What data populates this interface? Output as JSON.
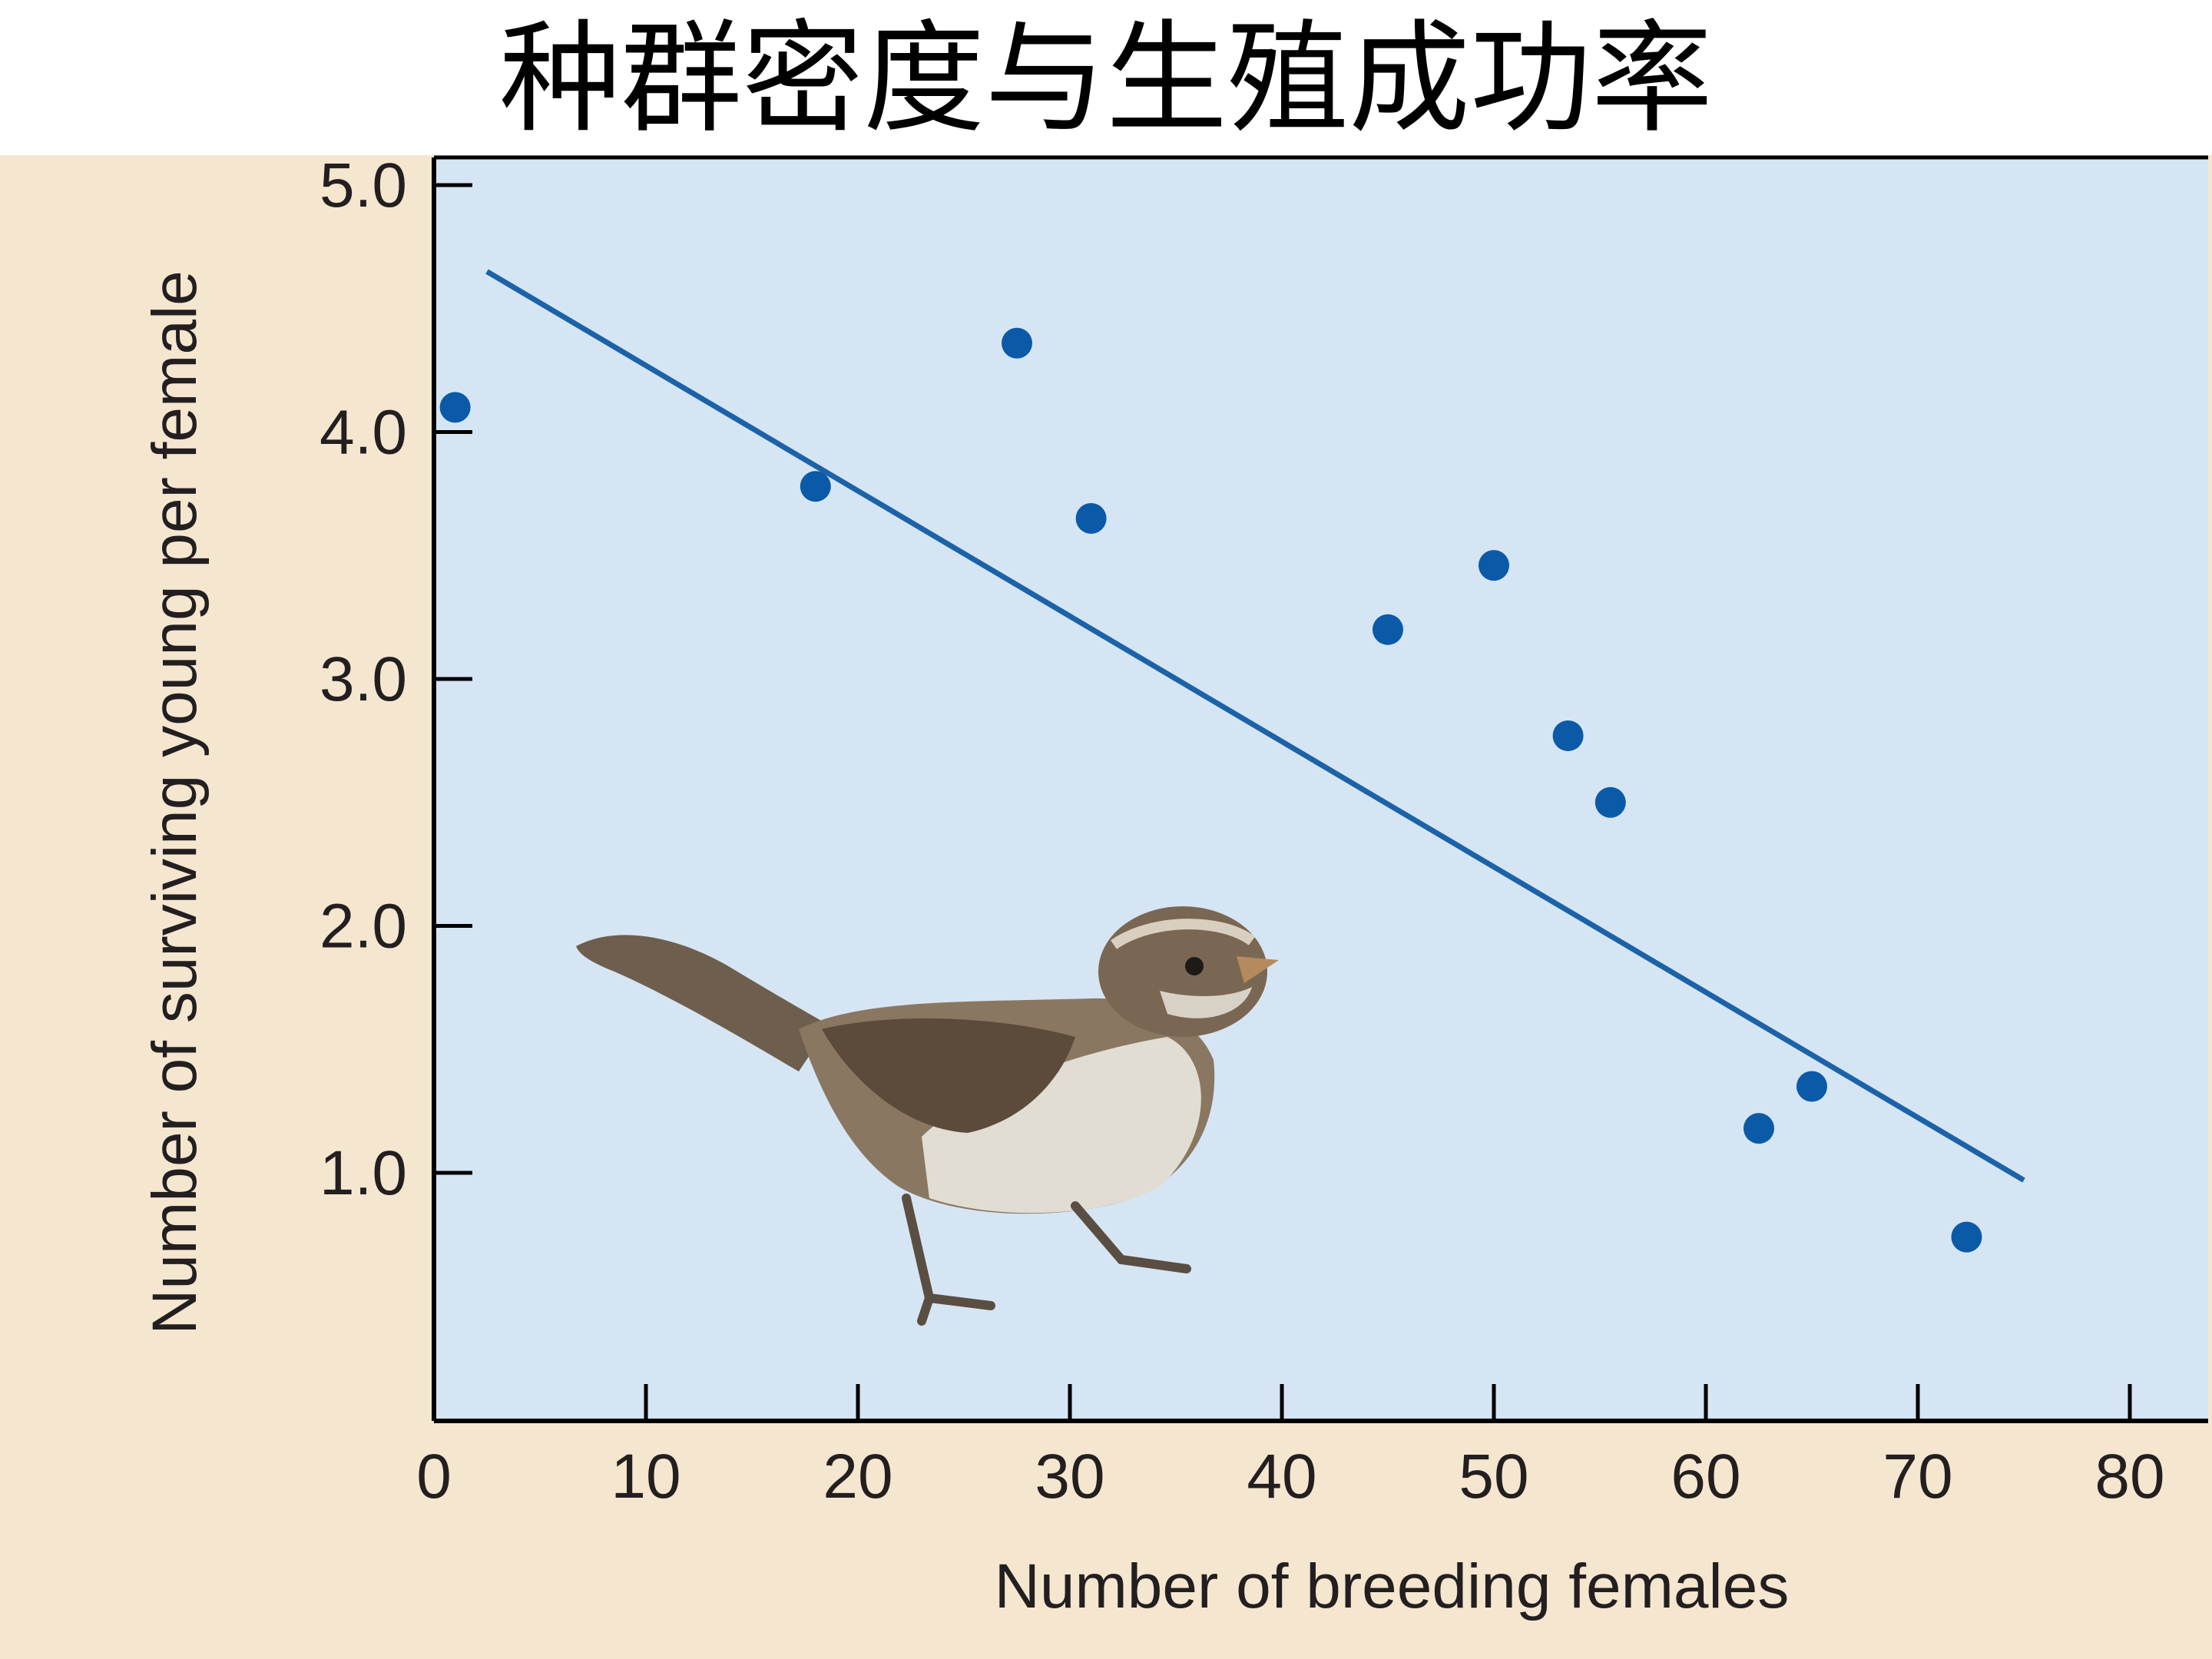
{
  "page_title": "种群密度与生殖成功率",
  "chart_data": {
    "type": "scatter",
    "title": "种群密度与生殖成功率",
    "xlabel": "Number of breeding females",
    "ylabel": "Number of surviving young per female",
    "xlim": [
      0,
      83
    ],
    "ylim": [
      0,
      5.1
    ],
    "xticks": [
      0,
      10,
      20,
      30,
      40,
      50,
      60,
      70,
      80
    ],
    "xtick_labels": [
      "0",
      "10",
      "20",
      "30",
      "40",
      "50",
      "60",
      "70",
      "80"
    ],
    "yticks": [
      1.0,
      2.0,
      3.0,
      4.0,
      5.0
    ],
    "ytick_labels": [
      "1.0",
      "2.0",
      "3.0",
      "4.0",
      "5.0"
    ],
    "grid": false,
    "points": [
      {
        "x": 1,
        "y": 4.1
      },
      {
        "x": 18,
        "y": 3.78
      },
      {
        "x": 27.5,
        "y": 4.36
      },
      {
        "x": 31,
        "y": 3.65
      },
      {
        "x": 45,
        "y": 3.2
      },
      {
        "x": 50,
        "y": 3.46
      },
      {
        "x": 53.5,
        "y": 2.77
      },
      {
        "x": 55.5,
        "y": 2.5
      },
      {
        "x": 62.5,
        "y": 1.18
      },
      {
        "x": 65,
        "y": 1.35
      },
      {
        "x": 72.3,
        "y": 0.74
      }
    ],
    "trend_line": {
      "x": [
        2.5,
        75
      ],
      "y": [
        4.65,
        0.97
      ]
    },
    "colors": {
      "outer_background": "#f5e6d0",
      "plot_background": "#d6e5f3",
      "points": "#0a5aa8",
      "line": "#1b62a8",
      "axis": "#000000"
    },
    "illustration": "sparrow"
  }
}
